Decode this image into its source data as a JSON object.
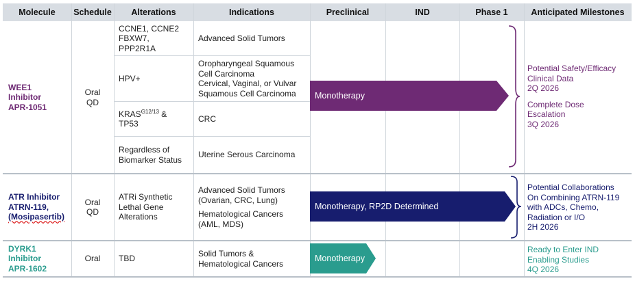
{
  "colors": {
    "wee1": "#6e2a74",
    "atr": "#171d6e",
    "dyrk1": "#2a9c8e",
    "header_bg": "#d8dde3",
    "grid": "#cfd5db"
  },
  "headers": {
    "molecule": "Molecule",
    "schedule": "Schedule",
    "alterations": "Alterations",
    "indications": "Indications",
    "preclinical": "Preclinical",
    "ind": "IND",
    "phase1": "Phase 1",
    "milestones": "Anticipated Milestones"
  },
  "wee1": {
    "name_line1": "WEE1",
    "name_line2": "Inhibitor",
    "name_line3": "APR-1051",
    "schedule_line1": "Oral",
    "schedule_line2": "QD",
    "alterations": {
      "a1_line1": "CCNE1, CCNE2",
      "a1_line2": "FBXW7,",
      "a1_line3": "PPP2R1A",
      "a2": "HPV+",
      "a3_base": "KRAS",
      "a3_sup": "G12/13",
      "a3_tail": " &",
      "a3_line2": "TP53",
      "a4_line1": "Regardless of",
      "a4_line2": "Biomarker Status"
    },
    "indications": {
      "i1": "Advanced Solid Tumors",
      "i2_line1": "Oropharyngeal Squamous",
      "i2_line2": "Cell Carcinoma",
      "i2_line3": "Cervical, Vaginal, or Vulvar",
      "i2_line4": "Squamous Cell Carcinoma",
      "i3": "CRC",
      "i4": "Uterine Serous Carcinoma"
    },
    "arrow_label": "Monotherapy",
    "progress_to_phase1_fraction": 1.0,
    "milestones": {
      "m1_line1": "Potential Safety/Efficacy",
      "m1_line2": "Clinical Data",
      "m1_line3": "2Q 2026",
      "m2_line1": "Complete Dose",
      "m2_line2": "Escalation",
      "m2_line3": "3Q 2026"
    }
  },
  "atr": {
    "name_line1": "ATR Inhibitor",
    "name_line2": "ATRN-119,",
    "name_line3": "(Mosipasertib)",
    "schedule_line1": "Oral",
    "schedule_line2": "QD",
    "alteration_line1": "ATRi Synthetic",
    "alteration_line2": "Lethal Gene",
    "alteration_line3": "Alterations",
    "indication_line1": "Advanced Solid Tumors",
    "indication_line2": "(Ovarian, CRC, Lung)",
    "indication_line3": "Hematological Cancers",
    "indication_line4": "(AML, MDS)",
    "arrow_label": "Monotherapy, RP2D Determined",
    "progress_to_phase1_fraction": 1.0,
    "milestones": {
      "line1": "Potential Collaborations",
      "line2": "On Combining ATRN-119",
      "line3": "with ADCs, Chemo,",
      "line4": "Radiation or I/O",
      "line5": "2H 2026"
    }
  },
  "dyrk1": {
    "name_line1": "DYRK1",
    "name_line2": "Inhibitor",
    "name_line3": "APR-1602",
    "schedule": "Oral",
    "alteration": "TBD",
    "indication_line1": "Solid Tumors &",
    "indication_line2": "Hematological Cancers",
    "arrow_label": "Monotherapy",
    "progress_to_phase1_fraction": 0.0,
    "milestones": {
      "line1": "Ready to Enter IND",
      "line2": "Enabling Studies",
      "line3": "4Q 2026"
    }
  }
}
